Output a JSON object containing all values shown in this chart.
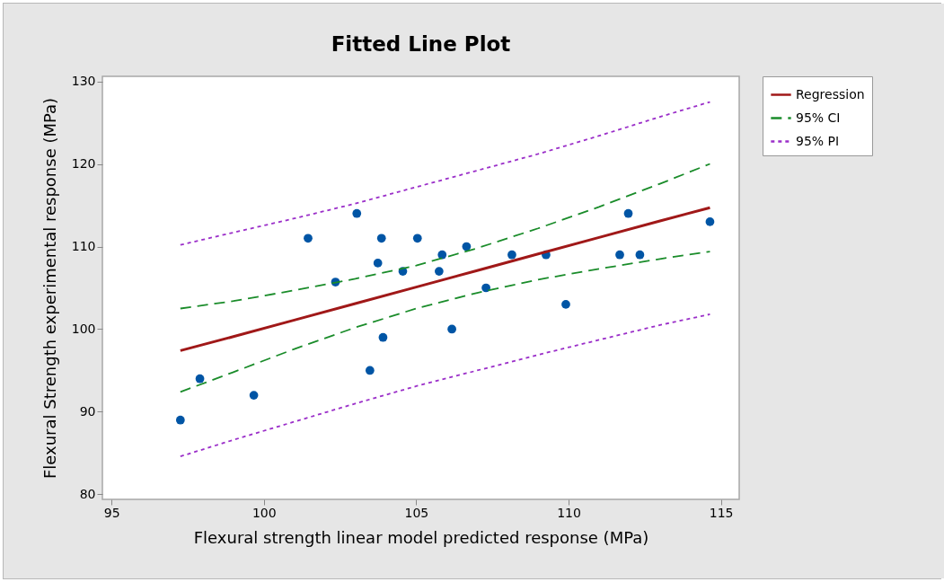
{
  "chart_data": {
    "type": "scatter",
    "title": "Fitted Line Plot",
    "xlabel": "Flexural strength linear model predicted response (MPa)",
    "ylabel": "Flexural Strength experimental response (MPa)",
    "xlim": [
      94.7,
      115.6
    ],
    "ylim": [
      79.4,
      130.6
    ],
    "xticks": [
      95,
      100,
      105,
      110,
      115
    ],
    "yticks": [
      80,
      90,
      100,
      110,
      120,
      130
    ],
    "grid": false,
    "legend": "top right",
    "series": [
      {
        "type": "scatter",
        "marker": "circle",
        "color": "#0055a5",
        "x": [
          97.26,
          97.9,
          99.67,
          101.45,
          102.35,
          103.05,
          103.48,
          103.74,
          103.86,
          103.91,
          104.56,
          105.04,
          105.75,
          105.85,
          106.17,
          106.55,
          106.65,
          107.29,
          108.14,
          109.26,
          109.91,
          111.68,
          111.96,
          112.34,
          114.64
        ],
        "values": [
          89,
          94,
          92,
          111,
          105.7,
          114,
          95,
          108,
          111,
          99,
          107,
          111,
          107,
          109,
          100,
          null,
          110,
          105,
          109,
          109,
          103,
          109,
          114,
          109,
          113
        ]
      },
      {
        "type": "line",
        "name": "Regression",
        "color": "#a01818",
        "line_style": "solid",
        "marker": "none",
        "x": [
          97.26,
          99,
          101,
          103,
          105,
          107,
          109,
          111,
          113,
          114.64
        ],
        "values": [
          97.4,
          99.1,
          101.1,
          103.1,
          105.1,
          107.1,
          109.1,
          111.1,
          113.1,
          114.7
        ]
      },
      {
        "type": "line",
        "name": "95% CI",
        "color": "#1a8c2a",
        "line_style": "dashed",
        "marker": "none",
        "x": [
          97.26,
          99,
          101,
          103,
          105,
          107,
          109,
          111,
          113,
          114.64
        ],
        "values": [
          102.5,
          103.4,
          104.7,
          106.1,
          107.7,
          109.8,
          112.2,
          114.8,
          117.6,
          120.0
        ]
      },
      {
        "type": "line",
        "color": "#1a8c2a",
        "line_style": "dashed",
        "marker": "none",
        "x": [
          97.26,
          99,
          101,
          103,
          105,
          107,
          109,
          111,
          113,
          114.64
        ],
        "values": [
          92.4,
          94.8,
          97.6,
          100.2,
          102.5,
          104.4,
          106.0,
          107.3,
          108.5,
          109.4
        ]
      },
      {
        "type": "line",
        "name": "95% PI",
        "color": "#9b2fc9",
        "line_style": "dotted",
        "marker": "none",
        "x": [
          97.26,
          99,
          101,
          103,
          105,
          107,
          109,
          111,
          113,
          114.64
        ],
        "values": [
          110.2,
          111.7,
          113.4,
          115.2,
          117.2,
          119.2,
          121.2,
          123.4,
          125.7,
          127.5
        ]
      },
      {
        "type": "line",
        "color": "#9b2fc9",
        "line_style": "dotted",
        "marker": "none",
        "x": [
          97.26,
          99,
          101,
          103,
          105,
          107,
          109,
          111,
          113,
          114.64
        ],
        "values": [
          84.6,
          86.6,
          88.8,
          91.0,
          93.1,
          95.0,
          96.9,
          98.7,
          100.5,
          101.8
        ]
      }
    ]
  }
}
